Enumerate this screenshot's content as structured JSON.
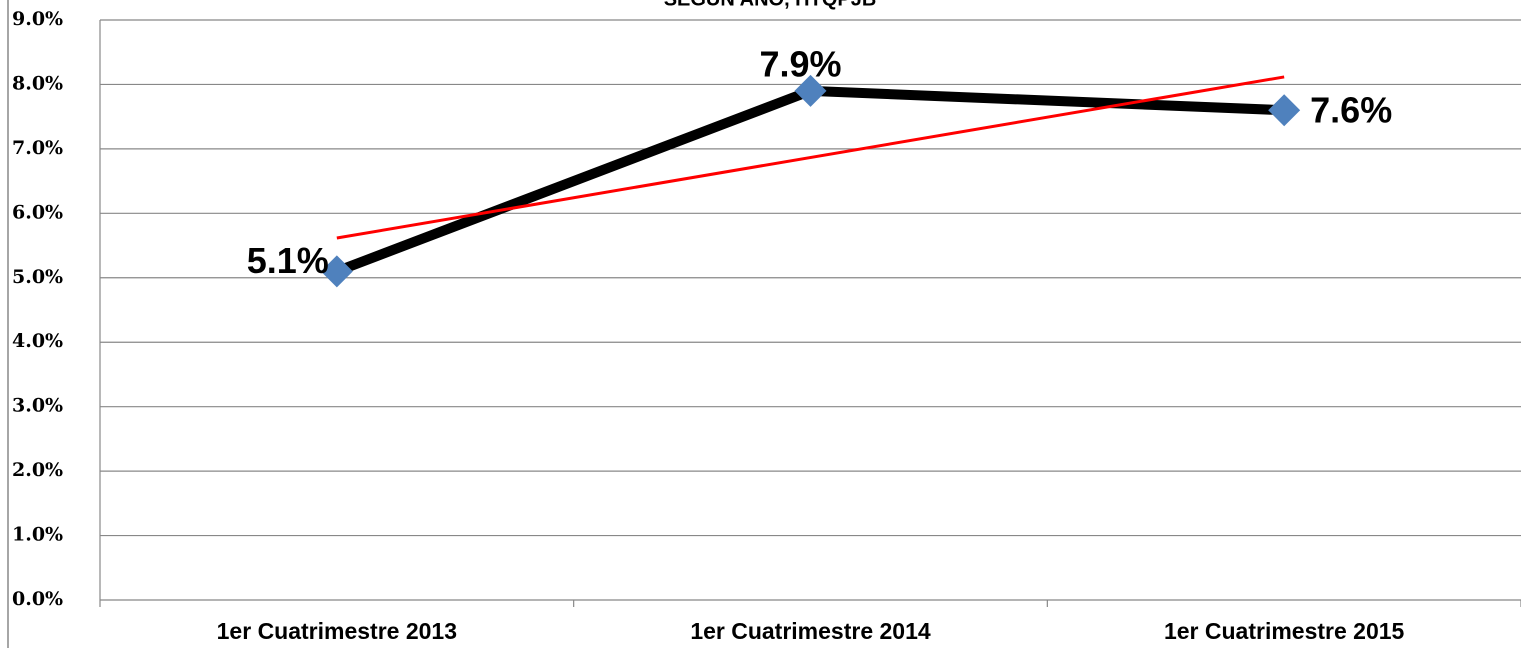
{
  "chart_data": {
    "type": "line",
    "title": "SEGÚN AÑO, HTQPJB",
    "categories": [
      "1er Cuatrimestre 2013",
      "1er Cuatrimestre 2014",
      "1er Cuatrimestre 2015"
    ],
    "values": [
      5.1,
      7.9,
      7.6
    ],
    "value_labels": [
      "5.1%",
      "7.9%",
      "7.6%"
    ],
    "color": "#000000",
    "marker_color": "#4f81bd",
    "trendline": true,
    "trendline_color": "#ff0000",
    "ylim": [
      0,
      9
    ],
    "yticks": [
      {
        "value": 0,
        "label": "0.0%"
      },
      {
        "value": 1,
        "label": "1.0%"
      },
      {
        "value": 2,
        "label": "2.0%"
      },
      {
        "value": 3,
        "label": "3.0%"
      },
      {
        "value": 4,
        "label": "4.0%"
      },
      {
        "value": 5,
        "label": "5.0%"
      },
      {
        "value": 6,
        "label": "6.0%"
      },
      {
        "value": 7,
        "label": "7.0%"
      },
      {
        "value": 8,
        "label": "8.0%"
      },
      {
        "value": 9,
        "label": "9.0%"
      }
    ],
    "grid": true
  }
}
